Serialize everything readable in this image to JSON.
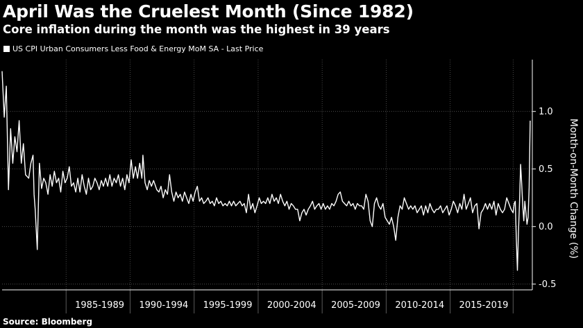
{
  "chart_data": {
    "type": "line",
    "title": "April Was the Cruelest Month (Since 1982)",
    "subtitle": "Core inflation during the month was the highest in 39 years",
    "source": "Source: Bloomberg",
    "ylabel": "Month-on-Month Change (%)",
    "ylim": [
      -0.55,
      1.45
    ],
    "y_ticks": [
      {
        "value": 1.0,
        "label": "1.0"
      },
      {
        "value": 0.5,
        "label": "0.5"
      },
      {
        "value": 0.0,
        "label": "0.0"
      },
      {
        "value": -0.5,
        "label": "-0.5"
      }
    ],
    "x_range": [
      "1980-01",
      "2021-06"
    ],
    "x_categories": [
      {
        "label": "1985-1989",
        "start": "1985-01",
        "end": "1989-12"
      },
      {
        "label": "1990-1994",
        "start": "1990-01",
        "end": "1994-12"
      },
      {
        "label": "1995-1999",
        "start": "1995-01",
        "end": "1999-12"
      },
      {
        "label": "2000-2004",
        "start": "2000-01",
        "end": "2004-12"
      },
      {
        "label": "2005-2009",
        "start": "2005-01",
        "end": "2009-12"
      },
      {
        "label": "2010-2014",
        "start": "2010-01",
        "end": "2014-12"
      },
      {
        "label": "2015-2019",
        "start": "2015-01",
        "end": "2019-12"
      }
    ],
    "grid": true,
    "legend_position": "top-left",
    "colors": {
      "background": "#000000",
      "line": "#ffffff",
      "grid": "#5a5a5a",
      "text": "#ffffff"
    },
    "series": [
      {
        "name": "US CPI Urban Consumers Less Food & Energy MoM SA - Last Price",
        "points": [
          [
            "1980-01",
            1.35
          ],
          [
            "1980-03",
            0.95
          ],
          [
            "1980-05",
            1.22
          ],
          [
            "1980-07",
            0.32
          ],
          [
            "1980-09",
            0.85
          ],
          [
            "1980-11",
            0.55
          ],
          [
            "1981-01",
            0.78
          ],
          [
            "1981-03",
            0.65
          ],
          [
            "1981-05",
            0.92
          ],
          [
            "1981-07",
            0.55
          ],
          [
            "1981-09",
            0.72
          ],
          [
            "1981-11",
            0.45
          ],
          [
            "1982-02",
            0.42
          ],
          [
            "1982-04",
            0.55
          ],
          [
            "1982-06",
            0.62
          ],
          [
            "1982-07",
            0.28
          ],
          [
            "1982-08",
            0.15
          ],
          [
            "1982-10",
            -0.2
          ],
          [
            "1982-12",
            0.55
          ],
          [
            "1983-02",
            0.33
          ],
          [
            "1983-04",
            0.42
          ],
          [
            "1983-06",
            0.38
          ],
          [
            "1983-08",
            0.28
          ],
          [
            "1983-10",
            0.45
          ],
          [
            "1983-12",
            0.35
          ],
          [
            "1984-02",
            0.48
          ],
          [
            "1984-04",
            0.38
          ],
          [
            "1984-06",
            0.42
          ],
          [
            "1984-08",
            0.3
          ],
          [
            "1984-10",
            0.48
          ],
          [
            "1984-12",
            0.38
          ],
          [
            "1985-02",
            0.42
          ],
          [
            "1985-04",
            0.52
          ],
          [
            "1985-06",
            0.35
          ],
          [
            "1985-08",
            0.38
          ],
          [
            "1985-10",
            0.3
          ],
          [
            "1985-12",
            0.42
          ],
          [
            "1986-02",
            0.3
          ],
          [
            "1986-04",
            0.45
          ],
          [
            "1986-06",
            0.35
          ],
          [
            "1986-08",
            0.28
          ],
          [
            "1986-10",
            0.42
          ],
          [
            "1986-12",
            0.32
          ],
          [
            "1987-02",
            0.35
          ],
          [
            "1987-04",
            0.42
          ],
          [
            "1987-06",
            0.38
          ],
          [
            "1987-08",
            0.32
          ],
          [
            "1987-10",
            0.4
          ],
          [
            "1987-12",
            0.35
          ],
          [
            "1988-02",
            0.42
          ],
          [
            "1988-04",
            0.35
          ],
          [
            "1988-06",
            0.45
          ],
          [
            "1988-08",
            0.35
          ],
          [
            "1988-10",
            0.42
          ],
          [
            "1988-12",
            0.38
          ],
          [
            "1989-02",
            0.45
          ],
          [
            "1989-04",
            0.35
          ],
          [
            "1989-06",
            0.42
          ],
          [
            "1989-08",
            0.32
          ],
          [
            "1989-10",
            0.45
          ],
          [
            "1989-12",
            0.38
          ],
          [
            "1990-02",
            0.58
          ],
          [
            "1990-04",
            0.42
          ],
          [
            "1990-06",
            0.52
          ],
          [
            "1990-08",
            0.42
          ],
          [
            "1990-10",
            0.55
          ],
          [
            "1990-12",
            0.42
          ],
          [
            "1991-01",
            0.62
          ],
          [
            "1991-03",
            0.38
          ],
          [
            "1991-05",
            0.32
          ],
          [
            "1991-07",
            0.4
          ],
          [
            "1991-09",
            0.35
          ],
          [
            "1991-11",
            0.4
          ],
          [
            "1992-02",
            0.32
          ],
          [
            "1992-04",
            0.3
          ],
          [
            "1992-06",
            0.35
          ],
          [
            "1992-08",
            0.25
          ],
          [
            "1992-10",
            0.32
          ],
          [
            "1992-12",
            0.28
          ],
          [
            "1993-02",
            0.45
          ],
          [
            "1993-04",
            0.3
          ],
          [
            "1993-06",
            0.22
          ],
          [
            "1993-08",
            0.3
          ],
          [
            "1993-10",
            0.25
          ],
          [
            "1993-12",
            0.28
          ],
          [
            "1994-02",
            0.22
          ],
          [
            "1994-04",
            0.3
          ],
          [
            "1994-06",
            0.25
          ],
          [
            "1994-08",
            0.2
          ],
          [
            "1994-10",
            0.28
          ],
          [
            "1994-12",
            0.22
          ],
          [
            "1995-02",
            0.3
          ],
          [
            "1995-04",
            0.35
          ],
          [
            "1995-06",
            0.22
          ],
          [
            "1995-08",
            0.25
          ],
          [
            "1995-10",
            0.2
          ],
          [
            "1995-12",
            0.22
          ],
          [
            "1996-02",
            0.25
          ],
          [
            "1996-04",
            0.2
          ],
          [
            "1996-06",
            0.22
          ],
          [
            "1996-08",
            0.18
          ],
          [
            "1996-10",
            0.25
          ],
          [
            "1996-12",
            0.2
          ],
          [
            "1997-02",
            0.22
          ],
          [
            "1997-04",
            0.18
          ],
          [
            "1997-06",
            0.2
          ],
          [
            "1997-08",
            0.18
          ],
          [
            "1997-10",
            0.22
          ],
          [
            "1997-12",
            0.18
          ],
          [
            "1998-02",
            0.22
          ],
          [
            "1998-04",
            0.18
          ],
          [
            "1998-06",
            0.2
          ],
          [
            "1998-08",
            0.22
          ],
          [
            "1998-10",
            0.18
          ],
          [
            "1998-12",
            0.2
          ],
          [
            "1999-02",
            0.12
          ],
          [
            "1999-04",
            0.28
          ],
          [
            "1999-06",
            0.15
          ],
          [
            "1999-08",
            0.2
          ],
          [
            "1999-10",
            0.12
          ],
          [
            "1999-12",
            0.18
          ],
          [
            "2000-02",
            0.25
          ],
          [
            "2000-04",
            0.2
          ],
          [
            "2000-06",
            0.22
          ],
          [
            "2000-08",
            0.2
          ],
          [
            "2000-10",
            0.25
          ],
          [
            "2000-12",
            0.2
          ],
          [
            "2001-02",
            0.28
          ],
          [
            "2001-04",
            0.22
          ],
          [
            "2001-06",
            0.25
          ],
          [
            "2001-08",
            0.2
          ],
          [
            "2001-10",
            0.28
          ],
          [
            "2001-12",
            0.22
          ],
          [
            "2002-02",
            0.18
          ],
          [
            "2002-04",
            0.22
          ],
          [
            "2002-06",
            0.15
          ],
          [
            "2002-08",
            0.2
          ],
          [
            "2002-10",
            0.18
          ],
          [
            "2002-12",
            0.15
          ],
          [
            "2003-02",
            0.15
          ],
          [
            "2003-04",
            0.05
          ],
          [
            "2003-06",
            0.12
          ],
          [
            "2003-08",
            0.15
          ],
          [
            "2003-10",
            0.1
          ],
          [
            "2003-12",
            0.15
          ],
          [
            "2004-02",
            0.18
          ],
          [
            "2004-04",
            0.22
          ],
          [
            "2004-06",
            0.15
          ],
          [
            "2004-08",
            0.18
          ],
          [
            "2004-10",
            0.2
          ],
          [
            "2004-12",
            0.15
          ],
          [
            "2005-02",
            0.2
          ],
          [
            "2005-04",
            0.15
          ],
          [
            "2005-06",
            0.18
          ],
          [
            "2005-08",
            0.15
          ],
          [
            "2005-10",
            0.2
          ],
          [
            "2005-12",
            0.18
          ],
          [
            "2006-02",
            0.22
          ],
          [
            "2006-04",
            0.28
          ],
          [
            "2006-06",
            0.3
          ],
          [
            "2006-08",
            0.22
          ],
          [
            "2006-10",
            0.2
          ],
          [
            "2006-12",
            0.18
          ],
          [
            "2007-02",
            0.22
          ],
          [
            "2007-04",
            0.18
          ],
          [
            "2007-06",
            0.2
          ],
          [
            "2007-08",
            0.15
          ],
          [
            "2007-10",
            0.2
          ],
          [
            "2007-12",
            0.18
          ],
          [
            "2008-02",
            0.18
          ],
          [
            "2008-04",
            0.15
          ],
          [
            "2008-06",
            0.28
          ],
          [
            "2008-08",
            0.22
          ],
          [
            "2008-10",
            0.05
          ],
          [
            "2008-12",
            0.0
          ],
          [
            "2009-02",
            0.2
          ],
          [
            "2009-04",
            0.25
          ],
          [
            "2009-06",
            0.18
          ],
          [
            "2009-08",
            0.15
          ],
          [
            "2009-10",
            0.2
          ],
          [
            "2009-12",
            0.08
          ],
          [
            "2010-02",
            0.05
          ],
          [
            "2010-04",
            0.02
          ],
          [
            "2010-06",
            0.08
          ],
          [
            "2010-08",
            0.0
          ],
          [
            "2010-10",
            -0.12
          ],
          [
            "2010-12",
            0.08
          ],
          [
            "2011-02",
            0.18
          ],
          [
            "2011-04",
            0.15
          ],
          [
            "2011-06",
            0.25
          ],
          [
            "2011-08",
            0.2
          ],
          [
            "2011-10",
            0.15
          ],
          [
            "2011-12",
            0.18
          ],
          [
            "2012-02",
            0.15
          ],
          [
            "2012-04",
            0.18
          ],
          [
            "2012-06",
            0.12
          ],
          [
            "2012-08",
            0.15
          ],
          [
            "2012-10",
            0.18
          ],
          [
            "2012-12",
            0.1
          ],
          [
            "2013-02",
            0.18
          ],
          [
            "2013-04",
            0.12
          ],
          [
            "2013-06",
            0.2
          ],
          [
            "2013-08",
            0.15
          ],
          [
            "2013-10",
            0.12
          ],
          [
            "2013-12",
            0.15
          ],
          [
            "2014-02",
            0.15
          ],
          [
            "2014-04",
            0.18
          ],
          [
            "2014-06",
            0.12
          ],
          [
            "2014-08",
            0.15
          ],
          [
            "2014-10",
            0.18
          ],
          [
            "2014-12",
            0.1
          ],
          [
            "2015-02",
            0.15
          ],
          [
            "2015-04",
            0.22
          ],
          [
            "2015-06",
            0.18
          ],
          [
            "2015-08",
            0.12
          ],
          [
            "2015-10",
            0.2
          ],
          [
            "2015-12",
            0.15
          ],
          [
            "2016-02",
            0.28
          ],
          [
            "2016-04",
            0.15
          ],
          [
            "2016-06",
            0.2
          ],
          [
            "2016-08",
            0.25
          ],
          [
            "2016-10",
            0.12
          ],
          [
            "2016-12",
            0.18
          ],
          [
            "2017-02",
            0.2
          ],
          [
            "2017-04",
            -0.02
          ],
          [
            "2017-06",
            0.12
          ],
          [
            "2017-08",
            0.15
          ],
          [
            "2017-10",
            0.2
          ],
          [
            "2017-12",
            0.15
          ],
          [
            "2018-02",
            0.2
          ],
          [
            "2018-04",
            0.15
          ],
          [
            "2018-06",
            0.22
          ],
          [
            "2018-08",
            0.1
          ],
          [
            "2018-10",
            0.2
          ],
          [
            "2018-12",
            0.15
          ],
          [
            "2019-02",
            0.12
          ],
          [
            "2019-04",
            0.15
          ],
          [
            "2019-06",
            0.25
          ],
          [
            "2019-08",
            0.2
          ],
          [
            "2019-10",
            0.15
          ],
          [
            "2019-12",
            0.12
          ],
          [
            "2020-01",
            0.2
          ],
          [
            "2020-02",
            0.22
          ],
          [
            "2020-03",
            -0.1
          ],
          [
            "2020-04",
            -0.38
          ],
          [
            "2020-05",
            -0.05
          ],
          [
            "2020-06",
            0.22
          ],
          [
            "2020-07",
            0.54
          ],
          [
            "2020-08",
            0.38
          ],
          [
            "2020-09",
            0.18
          ],
          [
            "2020-10",
            0.05
          ],
          [
            "2020-11",
            0.22
          ],
          [
            "2020-12",
            0.12
          ],
          [
            "2021-01",
            0.02
          ],
          [
            "2021-02",
            0.08
          ],
          [
            "2021-03",
            0.34
          ],
          [
            "2021-04",
            0.92
          ]
        ]
      }
    ]
  }
}
